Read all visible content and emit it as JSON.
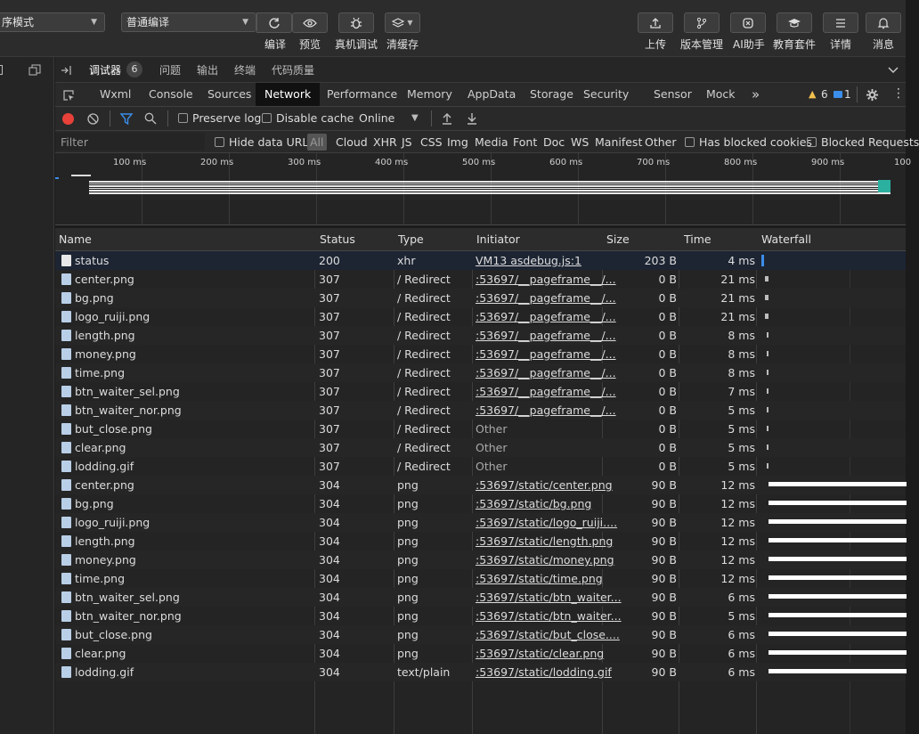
{
  "top": {
    "mode_select": "序模式",
    "compile_select": "普通编译",
    "buttons": [
      {
        "id": "compile",
        "label": "编译",
        "icon": "refresh-icon"
      },
      {
        "id": "preview",
        "label": "预览",
        "icon": "eye-icon"
      },
      {
        "id": "remote_debug",
        "label": "真机调试",
        "icon": "bug-icon"
      },
      {
        "id": "clear_cache",
        "label": "清缓存",
        "icon": "layers-icon"
      },
      {
        "id": "upload",
        "label": "上传",
        "icon": "upload-icon"
      },
      {
        "id": "version",
        "label": "版本管理",
        "icon": "branch-icon"
      },
      {
        "id": "ai",
        "label": "AI助手",
        "icon": "ai-icon"
      },
      {
        "id": "edu",
        "label": "教育套件",
        "icon": "graduation-icon"
      },
      {
        "id": "details",
        "label": "详情",
        "icon": "menu-icon"
      },
      {
        "id": "messages",
        "label": "消息",
        "icon": "bell-icon"
      }
    ]
  },
  "devtools_bar": {
    "tabs": [
      "调试器",
      "问题",
      "输出",
      "终端",
      "代码质量"
    ],
    "badge": "6"
  },
  "chrome_tabs": [
    "Wxml",
    "Console",
    "Sources",
    "Network",
    "Performance",
    "Memory",
    "AppData",
    "Storage",
    "Security",
    "Sensor",
    "Mock"
  ],
  "chrome_tabs_more": "»",
  "warnings": "6",
  "messages_count": "1",
  "network_bar": {
    "preserve_log": "Preserve log",
    "disable_cache": "Disable cache",
    "throttle": "Online"
  },
  "filter_bar": {
    "placeholder": "Filter",
    "hide_data_urls": "Hide data URLs",
    "types": [
      "All",
      "Cloud",
      "XHR",
      "JS",
      "CSS",
      "Img",
      "Media",
      "Font",
      "Doc",
      "WS",
      "Manifest",
      "Other"
    ],
    "has_blocked_cookies": "Has blocked cookies",
    "blocked_requests": "Blocked Requests"
  },
  "overview_ticks": [
    "100 ms",
    "200 ms",
    "300 ms",
    "400 ms",
    "500 ms",
    "600 ms",
    "700 ms",
    "800 ms",
    "900 ms",
    "100"
  ],
  "columns": [
    "Name",
    "Status",
    "Type",
    "Initiator",
    "Size",
    "Time",
    "Waterfall"
  ],
  "rows": [
    {
      "name": "status",
      "status": "200",
      "type": "xhr",
      "initiator": "VM13 asdebug.js:1",
      "size": "203 B",
      "time": "4 ms",
      "wf": 0.01
    },
    {
      "name": "center.png",
      "status": "307",
      "type": "/ Redirect",
      "initiator": ":53697/__pageframe__/...",
      "size": "0 B",
      "time": "21 ms",
      "wf": 0.03
    },
    {
      "name": "bg.png",
      "status": "307",
      "type": "/ Redirect",
      "initiator": ":53697/__pageframe__/...",
      "size": "0 B",
      "time": "21 ms",
      "wf": 0.03
    },
    {
      "name": "logo_ruiji.png",
      "status": "307",
      "type": "/ Redirect",
      "initiator": ":53697/__pageframe__/...",
      "size": "0 B",
      "time": "21 ms",
      "wf": 0.03
    },
    {
      "name": "length.png",
      "status": "307",
      "type": "/ Redirect",
      "initiator": ":53697/__pageframe__/...",
      "size": "0 B",
      "time": "8 ms",
      "wf": 0.01
    },
    {
      "name": "money.png",
      "status": "307",
      "type": "/ Redirect",
      "initiator": ":53697/__pageframe__/...",
      "size": "0 B",
      "time": "8 ms",
      "wf": 0.01
    },
    {
      "name": "time.png",
      "status": "307",
      "type": "/ Redirect",
      "initiator": ":53697/__pageframe__/...",
      "size": "0 B",
      "time": "8 ms",
      "wf": 0.01
    },
    {
      "name": "btn_waiter_sel.png",
      "status": "307",
      "type": "/ Redirect",
      "initiator": ":53697/__pageframe__/...",
      "size": "0 B",
      "time": "7 ms",
      "wf": 0.01
    },
    {
      "name": "btn_waiter_nor.png",
      "status": "307",
      "type": "/ Redirect",
      "initiator": ":53697/__pageframe__/...",
      "size": "0 B",
      "time": "5 ms",
      "wf": 0.01
    },
    {
      "name": "but_close.png",
      "status": "307",
      "type": "/ Redirect",
      "initiator": "Other",
      "size": "0 B",
      "time": "5 ms",
      "wf": 0.01
    },
    {
      "name": "clear.png",
      "status": "307",
      "type": "/ Redirect",
      "initiator": "Other",
      "size": "0 B",
      "time": "5 ms",
      "wf": 0.01
    },
    {
      "name": "lodding.gif",
      "status": "307",
      "type": "/ Redirect",
      "initiator": "Other",
      "size": "0 B",
      "time": "5 ms",
      "wf": 0.01
    },
    {
      "name": "center.png",
      "status": "304",
      "type": "png",
      "initiator": ":53697/static/center.png",
      "size": "90 B",
      "time": "12 ms",
      "wf": 1
    },
    {
      "name": "bg.png",
      "status": "304",
      "type": "png",
      "initiator": ":53697/static/bg.png",
      "size": "90 B",
      "time": "12 ms",
      "wf": 1
    },
    {
      "name": "logo_ruiji.png",
      "status": "304",
      "type": "png",
      "initiator": ":53697/static/logo_ruiji....",
      "size": "90 B",
      "time": "12 ms",
      "wf": 1
    },
    {
      "name": "length.png",
      "status": "304",
      "type": "png",
      "initiator": ":53697/static/length.png",
      "size": "90 B",
      "time": "12 ms",
      "wf": 1
    },
    {
      "name": "money.png",
      "status": "304",
      "type": "png",
      "initiator": ":53697/static/money.png",
      "size": "90 B",
      "time": "12 ms",
      "wf": 1
    },
    {
      "name": "time.png",
      "status": "304",
      "type": "png",
      "initiator": ":53697/static/time.png",
      "size": "90 B",
      "time": "12 ms",
      "wf": 1
    },
    {
      "name": "btn_waiter_sel.png",
      "status": "304",
      "type": "png",
      "initiator": ":53697/static/btn_waiter...",
      "size": "90 B",
      "time": "6 ms",
      "wf": 1
    },
    {
      "name": "btn_waiter_nor.png",
      "status": "304",
      "type": "png",
      "initiator": ":53697/static/btn_waiter...",
      "size": "90 B",
      "time": "5 ms",
      "wf": 1
    },
    {
      "name": "but_close.png",
      "status": "304",
      "type": "png",
      "initiator": ":53697/static/but_close....",
      "size": "90 B",
      "time": "6 ms",
      "wf": 1
    },
    {
      "name": "clear.png",
      "status": "304",
      "type": "png",
      "initiator": ":53697/static/clear.png",
      "size": "90 B",
      "time": "6 ms",
      "wf": 1
    },
    {
      "name": "lodding.gif",
      "status": "304",
      "type": "text/plain",
      "initiator": ":53697/static/lodding.gif",
      "size": "90 B",
      "time": "6 ms",
      "wf": 1
    }
  ],
  "colors": {
    "accent": "#3b8eea",
    "record": "#e8413a",
    "warn": "#f2c14e",
    "waterfall": "#ffffff"
  }
}
